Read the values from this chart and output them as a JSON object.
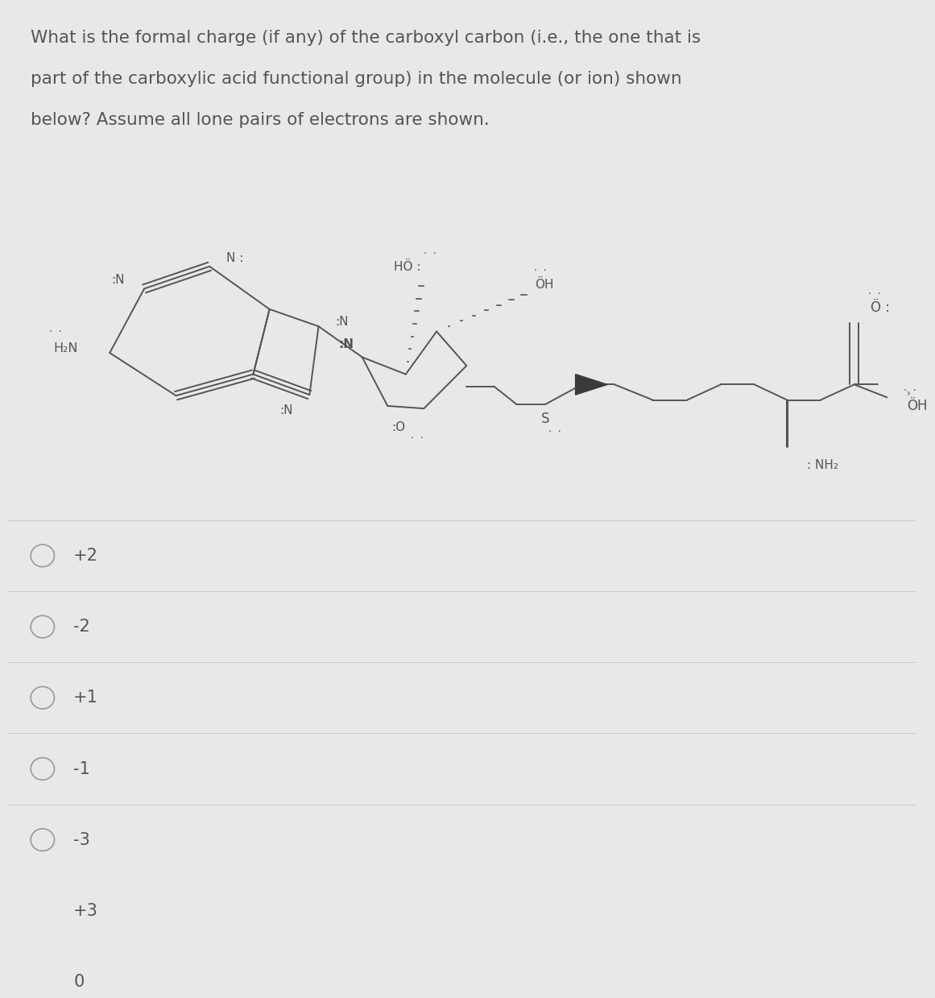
{
  "title_lines": [
    "What is the formal charge (if any) of the carboxyl carbon (i.e., the one that is",
    "part of the carboxylic acid functional group) in the molecule (or ion) shown",
    "below? Assume all lone pairs of electrons are shown."
  ],
  "options": [
    "+2",
    "-2",
    "+1",
    "-1",
    "-3",
    "+3",
    "0"
  ],
  "bg_color": "#e8e8e8",
  "text_color": "#555555",
  "molecule_color": "#555555",
  "title_fontsize": 15.5,
  "option_fontsize": 15,
  "divider_color": "#cccccc"
}
